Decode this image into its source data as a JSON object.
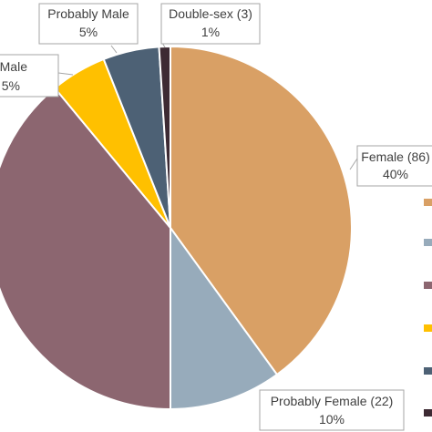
{
  "chart_data": {
    "type": "pie",
    "title": "",
    "slices": [
      {
        "name": "Female",
        "count": "86",
        "percent": "40%",
        "value": 40,
        "color": "#D9A065"
      },
      {
        "name": "Probably Female",
        "count": "22",
        "percent": "10%",
        "value": 10,
        "color": "#97ABBB"
      },
      {
        "name": "",
        "count": "",
        "percent": "",
        "value": 39,
        "color": "#8C6670"
      },
      {
        "name": "Male",
        "count": "",
        "percent": "5%",
        "value": 5,
        "color": "#FFC000"
      },
      {
        "name": "Probably Male",
        "count": "",
        "percent": "5%",
        "value": 5,
        "color": "#4D6175"
      },
      {
        "name": "Double-sex",
        "count": "3",
        "percent": "1%",
        "value": 1,
        "color": "#3D2A33"
      }
    ],
    "legend": {
      "position": "right",
      "colors": [
        "#D9A065",
        "#97ABBB",
        "#8C6670",
        "#FFC000",
        "#4D6175",
        "#3D2A33"
      ]
    },
    "data_labels": [
      {
        "line1": "Female (86)",
        "line2": "40%"
      },
      {
        "line1": "Probably Female (22)",
        "line2": "10%"
      },
      {
        "line1": "Male",
        "line2": "5%"
      },
      {
        "line1": "Probably Male",
        "line2": "5%"
      },
      {
        "line1": "Double-sex (3)",
        "line2": "1%"
      }
    ]
  }
}
